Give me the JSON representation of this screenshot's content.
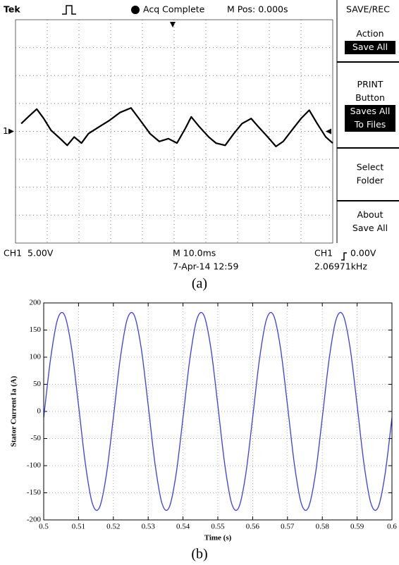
{
  "scope": {
    "brand": "Tek",
    "status": "Acq Complete",
    "position": "M Pos: 0.000s",
    "menu_title": "SAVE/REC",
    "menu": [
      {
        "lines": [
          "Action"
        ],
        "highlight": [
          "Save All"
        ]
      },
      {
        "lines": [
          "PRINT",
          "Button"
        ],
        "highlight": [
          "Saves All",
          "To Files"
        ]
      },
      {
        "lines": [
          "Select",
          "Folder"
        ]
      },
      {
        "lines": [
          "About",
          "Save All"
        ]
      }
    ],
    "channel_marker": "1",
    "ch_scale": "CH1  5.00V",
    "timebase": "M 10.0ms",
    "datetime": "7-Apr-14 12:59",
    "trigger_channel": "CH1",
    "trigger_level": "0.00V",
    "frequency": "2.06971kHz",
    "caption": "(a)",
    "trace": {
      "type": "line",
      "color": "#000000",
      "xlim": [
        -50,
        50
      ],
      "ylim": [
        -20,
        20
      ],
      "x": [
        -48.2,
        -46.0,
        -43.3,
        -41.1,
        -38.8,
        -35.9,
        -33.7,
        -31.5,
        -29.2,
        -27.0,
        -23.7,
        -20.3,
        -17.0,
        -13.6,
        -10.7,
        -7.6,
        -4.7,
        -1.8,
        0.9,
        3.6,
        5.4,
        8.0,
        10.9,
        13.2,
        16.1,
        18.8,
        21.4,
        24.3,
        26.6,
        29.5,
        32.1,
        34.4,
        37.1,
        40.0,
        42.6,
        45.1,
        47.8,
        50.0
      ],
      "values": [
        1.4,
        2.6,
        4.0,
        2.3,
        0.2,
        -1.3,
        -2.5,
        -1.0,
        -2.1,
        -0.4,
        0.8,
        2.0,
        3.4,
        4.2,
        2.0,
        -0.4,
        -1.8,
        -1.3,
        -2.1,
        0.6,
        2.6,
        0.8,
        -1.0,
        -2.1,
        -2.5,
        -0.4,
        1.4,
        2.3,
        0.8,
        -1.0,
        -2.7,
        -1.8,
        0.2,
        2.3,
        3.8,
        1.4,
        -1.0,
        -2.1
      ]
    }
  },
  "chart_data": {
    "type": "line",
    "caption": "(b)",
    "xlabel": "Time (s)",
    "ylabel": "Stator Current Ia (A)",
    "grid": true,
    "xlim": [
      0.5,
      0.6
    ],
    "ylim": [
      -200,
      200
    ],
    "xticks": [
      0.5,
      0.51,
      0.52,
      0.53,
      0.54,
      0.55,
      0.56,
      0.57,
      0.58,
      0.59,
      0.6
    ],
    "yticks": [
      -200,
      -150,
      -100,
      -50,
      0,
      50,
      100,
      150,
      200
    ],
    "x": [
      0.5,
      0.502,
      0.504,
      0.506,
      0.508,
      0.51,
      0.512,
      0.514,
      0.516,
      0.518,
      0.52,
      0.522,
      0.524,
      0.526,
      0.528,
      0.53,
      0.532,
      0.534,
      0.536,
      0.538,
      0.54,
      0.542,
      0.544,
      0.546,
      0.548,
      0.55,
      0.552,
      0.554,
      0.556,
      0.558,
      0.56,
      0.562,
      0.564,
      0.566,
      0.568,
      0.57,
      0.572,
      0.574,
      0.576,
      0.578,
      0.58,
      0.582,
      0.584,
      0.586,
      0.588,
      0.59,
      0.592,
      0.594,
      0.596,
      0.598,
      0.6
    ],
    "series": [
      {
        "color": "#3b3bf0",
        "values": [
          -11.5,
          98.1,
          170.2,
          177.3,
          116.6,
          11.5,
          -98.1,
          -170.2,
          -177.3,
          -116.6,
          -11.5,
          98.1,
          170.2,
          177.3,
          116.6,
          11.5,
          -98.1,
          -170.2,
          -177.3,
          -116.6,
          -11.5,
          98.1,
          170.2,
          177.3,
          116.6,
          11.5,
          -98.1,
          -170.2,
          -177.3,
          -116.6,
          -11.5,
          98.1,
          170.2,
          177.3,
          116.6,
          11.5,
          -98.1,
          -170.2,
          -177.3,
          -116.6,
          -11.5,
          98.1,
          170.2,
          177.3,
          116.6,
          11.5,
          -98.1,
          -170.2,
          -177.3,
          -116.6,
          -11.5
        ]
      }
    ]
  }
}
